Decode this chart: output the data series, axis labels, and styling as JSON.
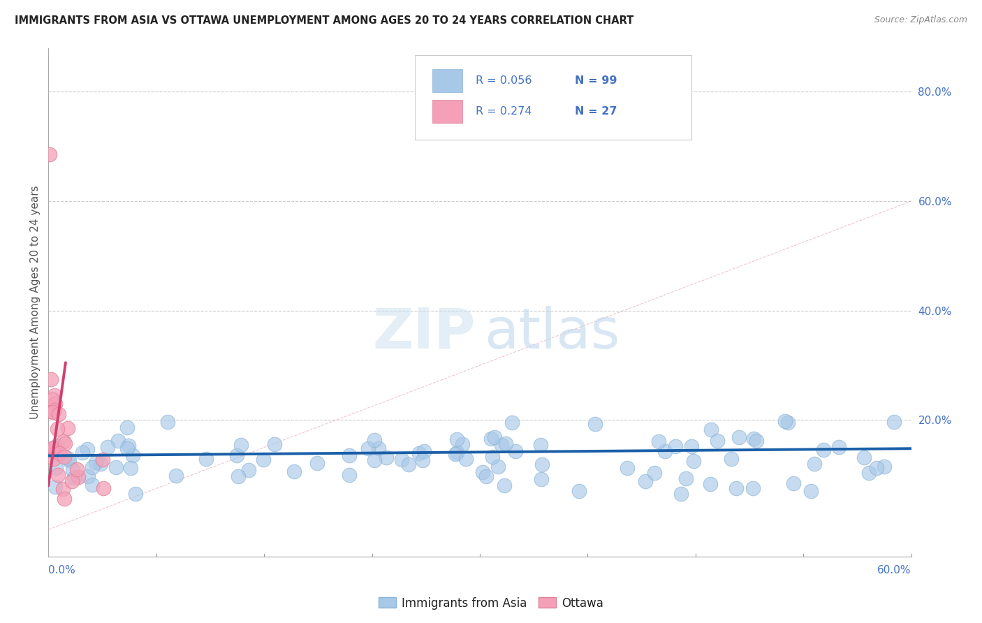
{
  "title": "IMMIGRANTS FROM ASIA VS OTTAWA UNEMPLOYMENT AMONG AGES 20 TO 24 YEARS CORRELATION CHART",
  "source": "Source: ZipAtlas.com",
  "ylabel": "Unemployment Among Ages 20 to 24 years",
  "ylabel_right_ticks": [
    "80.0%",
    "60.0%",
    "40.0%",
    "20.0%"
  ],
  "ylabel_right_vals": [
    0.8,
    0.6,
    0.4,
    0.2
  ],
  "xmin": 0.0,
  "xmax": 0.6,
  "ymin": -0.05,
  "ymax": 0.88,
  "legend_label1": "Immigrants from Asia",
  "legend_label2": "Ottawa",
  "color_blue": "#a8c8e8",
  "color_blue_edge": "#8ab4d4",
  "color_pink": "#f4a0b8",
  "color_pink_edge": "#e08098",
  "color_blue_line": "#1a5fa8",
  "color_pink_line": "#d04070",
  "color_title": "#222222",
  "color_source": "#888888",
  "color_axis_labels": "#4472c4",
  "color_legend_text": "#4472c4",
  "watermark_zip_color": "#cce0f0",
  "watermark_atlas_color": "#b8d4ea",
  "blue_line_y0": 0.135,
  "blue_line_y1": 0.148,
  "pink_line_x0": 0.0,
  "pink_line_y0": 0.08,
  "pink_line_x1": 0.012,
  "pink_line_y1": 0.305
}
